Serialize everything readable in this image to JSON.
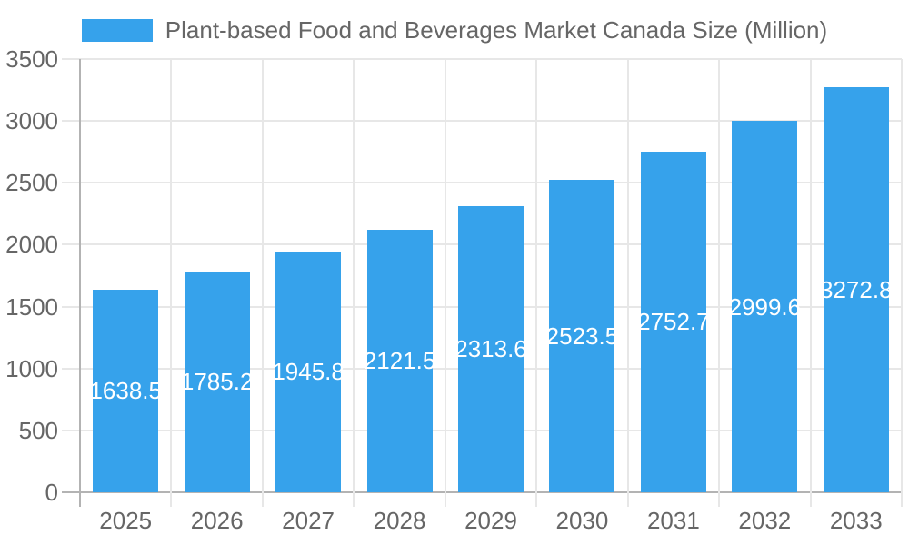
{
  "chart_data": {
    "type": "bar",
    "title": "Plant-based Food and Beverages Market Canada Size (Million)",
    "legend_position": "top",
    "categories": [
      "2025",
      "2026",
      "2027",
      "2028",
      "2029",
      "2030",
      "2031",
      "2032",
      "2033"
    ],
    "values": [
      1638.5,
      1785.2,
      1945.8,
      2121.5,
      2313.6,
      2523.5,
      2752.7,
      2999.6,
      3272.8
    ],
    "value_labels": [
      "1638.5",
      "1785.2",
      "1945.8",
      "2121.5",
      "2313.6",
      "2523.5",
      "2752.7",
      "2999.6",
      "3272.8"
    ],
    "value_label_position": "inside-center",
    "xlabel": "",
    "ylabel": "",
    "ylim": [
      0,
      3500
    ],
    "ytick_step": 500,
    "yticks": [
      "0",
      "500",
      "1000",
      "1500",
      "2000",
      "2500",
      "3000",
      "3500"
    ],
    "grid": true,
    "colors": {
      "bar": "#36A2EB",
      "axis_text": "#666666",
      "grid_line": "#e7e7e7",
      "zero_line": "#b3b3b3",
      "value_label_text": "#ffffff",
      "background": "#ffffff"
    }
  }
}
